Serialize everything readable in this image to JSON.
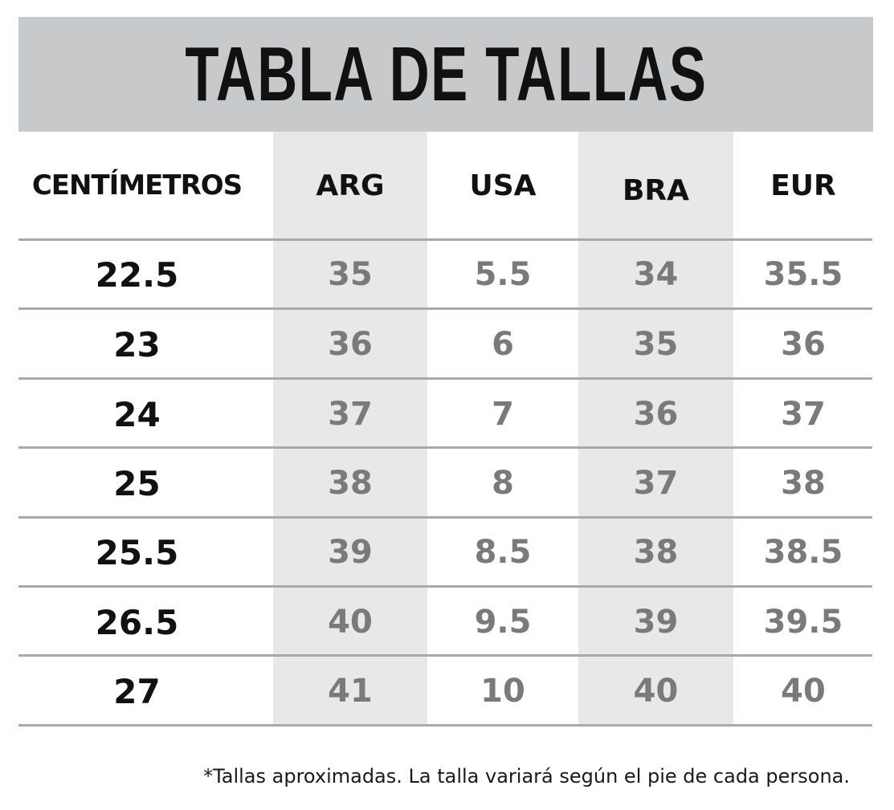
{
  "title": "TABLA DE TALLAS",
  "headers": [
    "CENTÍMETROS",
    "ARG",
    "USA",
    "BRA",
    "EUR"
  ],
  "rows": [
    [
      "22.5",
      "35",
      "5.5",
      "34",
      "35.5"
    ],
    [
      "23",
      "36",
      "6",
      "35",
      "36"
    ],
    [
      "24",
      "37",
      "7",
      "36",
      "37"
    ],
    [
      "25",
      "38",
      "8",
      "37",
      "38"
    ],
    [
      "25.5",
      "39",
      "8.5",
      "38",
      "38.5"
    ],
    [
      "26.5",
      "40",
      "9.5",
      "39",
      "39.5"
    ],
    [
      "27",
      "41",
      "10",
      "40",
      "40"
    ]
  ],
  "footnote": "*Tallas aproximadas. La talla variará según el pie de cada persona.",
  "colors": {
    "title_bar": "#c8c9cb",
    "shaded_column": "#e8e8e8",
    "value_text": "#7a7a7a",
    "divider": "#a9a9a9"
  }
}
